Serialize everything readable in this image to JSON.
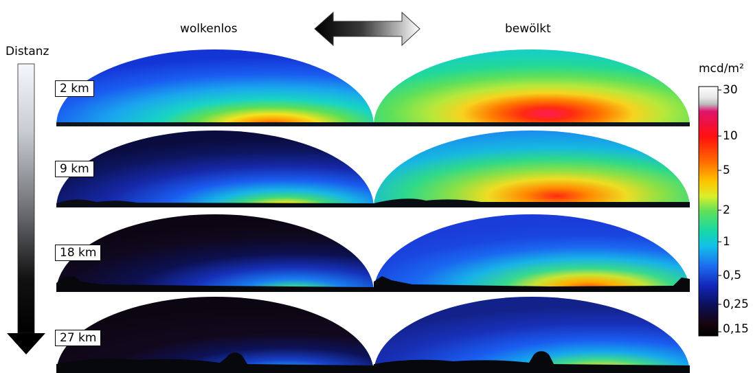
{
  "columns": {
    "left": "wolkenlos",
    "right": "bewölkt"
  },
  "distance_axis": {
    "label": "Distanz"
  },
  "rows": [
    {
      "distance": "2 km"
    },
    {
      "distance": "9 km"
    },
    {
      "distance": "18 km"
    },
    {
      "distance": "27 km"
    }
  ],
  "colorbar": {
    "unit": "mcd/m²",
    "ticks": [
      "30",
      "10",
      "5",
      "2",
      "1",
      "0,5",
      "0,25",
      "0,15"
    ]
  }
}
